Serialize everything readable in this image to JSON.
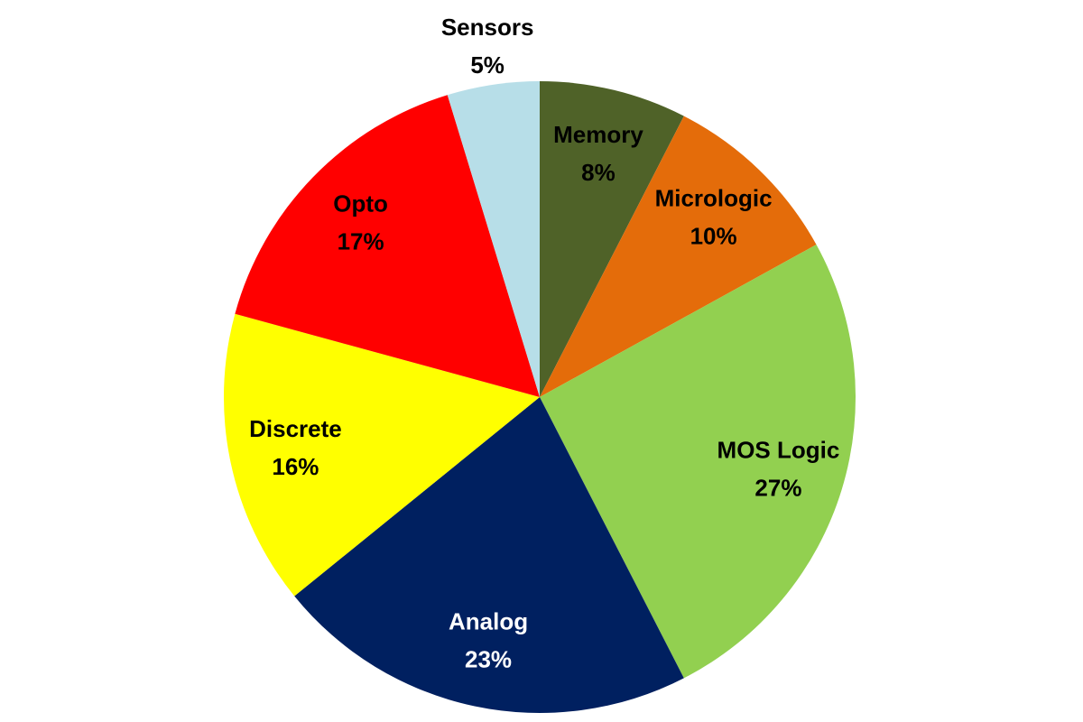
{
  "chart_data": {
    "type": "pie",
    "categories": [
      "Memory",
      "Micrologic",
      "MOS Logic",
      "Analog",
      "Discrete",
      "Opto",
      "Sensors"
    ],
    "values": [
      8,
      10,
      27,
      23,
      16,
      17,
      5
    ],
    "value_labels": [
      "8%",
      "10%",
      "27%",
      "23%",
      "16%",
      "17%",
      "5%"
    ],
    "colors": [
      "#4f6228",
      "#e46c0a",
      "#92d050",
      "#002060",
      "#ffff00",
      "#ff0000",
      "#b7dee8"
    ]
  }
}
